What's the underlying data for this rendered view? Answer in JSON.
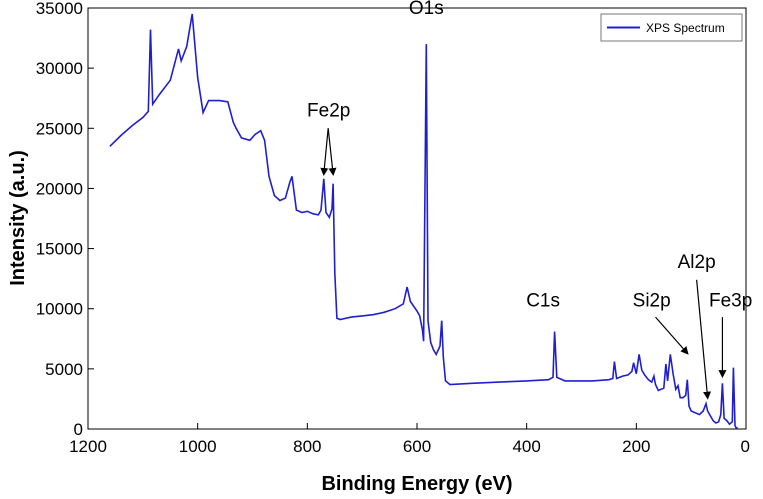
{
  "chart_data": {
    "type": "line",
    "title": "",
    "xlabel": "Binding Energy (eV)",
    "ylabel": "Intensity (a.u.)",
    "xlim": [
      1200,
      0
    ],
    "ylim": [
      0,
      35000
    ],
    "x_reversed": true,
    "x_ticks": [
      1200,
      1000,
      800,
      600,
      400,
      200,
      0
    ],
    "y_ticks": [
      0,
      5000,
      10000,
      15000,
      20000,
      25000,
      30000,
      35000
    ],
    "grid": false,
    "legend": {
      "position": "top-right",
      "entries": [
        "XPS Spectrum"
      ]
    },
    "series": [
      {
        "name": "XPS Spectrum",
        "color": "#1f1fd0",
        "points": [
          [
            1160,
            23500
          ],
          [
            1140,
            24400
          ],
          [
            1120,
            25200
          ],
          [
            1100,
            25900
          ],
          [
            1090,
            26400
          ],
          [
            1086,
            33200
          ],
          [
            1082,
            27000
          ],
          [
            1070,
            27800
          ],
          [
            1050,
            29000
          ],
          [
            1035,
            31600
          ],
          [
            1030,
            30600
          ],
          [
            1020,
            31800
          ],
          [
            1010,
            34500
          ],
          [
            1000,
            29200
          ],
          [
            990,
            26300
          ],
          [
            980,
            27300
          ],
          [
            960,
            27300
          ],
          [
            945,
            27200
          ],
          [
            935,
            25500
          ],
          [
            930,
            25000
          ],
          [
            920,
            24200
          ],
          [
            905,
            24000
          ],
          [
            895,
            24500
          ],
          [
            885,
            24800
          ],
          [
            878,
            24000
          ],
          [
            870,
            21000
          ],
          [
            860,
            19400
          ],
          [
            850,
            19000
          ],
          [
            840,
            19200
          ],
          [
            832,
            20500
          ],
          [
            828,
            21000
          ],
          [
            820,
            18200
          ],
          [
            810,
            18000
          ],
          [
            800,
            18100
          ],
          [
            790,
            17900
          ],
          [
            780,
            17800
          ],
          [
            775,
            18200
          ],
          [
            770,
            20800
          ],
          [
            766,
            18000
          ],
          [
            760,
            17600
          ],
          [
            755,
            18300
          ],
          [
            753,
            20400
          ],
          [
            750,
            13000
          ],
          [
            746,
            9200
          ],
          [
            740,
            9100
          ],
          [
            720,
            9300
          ],
          [
            700,
            9400
          ],
          [
            680,
            9500
          ],
          [
            660,
            9700
          ],
          [
            640,
            10000
          ],
          [
            625,
            10400
          ],
          [
            618,
            11800
          ],
          [
            612,
            10600
          ],
          [
            600,
            9800
          ],
          [
            595,
            9400
          ],
          [
            590,
            8200
          ],
          [
            588,
            7300
          ],
          [
            585,
            22000
          ],
          [
            583,
            32000
          ],
          [
            580,
            9000
          ],
          [
            575,
            7200
          ],
          [
            570,
            6600
          ],
          [
            565,
            6200
          ],
          [
            558,
            6900
          ],
          [
            555,
            9000
          ],
          [
            552,
            6000
          ],
          [
            548,
            4000
          ],
          [
            540,
            3700
          ],
          [
            500,
            3800
          ],
          [
            450,
            3900
          ],
          [
            400,
            4000
          ],
          [
            360,
            4100
          ],
          [
            352,
            4300
          ],
          [
            349,
            8100
          ],
          [
            345,
            4300
          ],
          [
            330,
            4000
          ],
          [
            300,
            4000
          ],
          [
            280,
            4000
          ],
          [
            250,
            4100
          ],
          [
            243,
            4200
          ],
          [
            240,
            5600
          ],
          [
            236,
            4200
          ],
          [
            225,
            4400
          ],
          [
            215,
            4500
          ],
          [
            208,
            4800
          ],
          [
            205,
            5500
          ],
          [
            200,
            4600
          ],
          [
            195,
            6200
          ],
          [
            190,
            4900
          ],
          [
            185,
            4500
          ],
          [
            178,
            4100
          ],
          [
            172,
            3900
          ],
          [
            168,
            4400
          ],
          [
            165,
            3700
          ],
          [
            160,
            3200
          ],
          [
            150,
            3400
          ],
          [
            146,
            5400
          ],
          [
            143,
            4000
          ],
          [
            138,
            6200
          ],
          [
            133,
            4600
          ],
          [
            128,
            3300
          ],
          [
            124,
            3600
          ],
          [
            120,
            2600
          ],
          [
            115,
            2600
          ],
          [
            110,
            2800
          ],
          [
            107,
            4100
          ],
          [
            104,
            1900
          ],
          [
            100,
            1500
          ],
          [
            85,
            1200
          ],
          [
            78,
            1500
          ],
          [
            73,
            2100
          ],
          [
            70,
            1500
          ],
          [
            60,
            700
          ],
          [
            55,
            500
          ],
          [
            50,
            600
          ],
          [
            46,
            1200
          ],
          [
            43,
            3800
          ],
          [
            40,
            900
          ],
          [
            35,
            700
          ],
          [
            30,
            400
          ],
          [
            25,
            600
          ],
          [
            23,
            5100
          ],
          [
            20,
            300
          ],
          [
            18,
            100
          ],
          [
            15,
            50
          ]
        ]
      }
    ],
    "annotations": [
      {
        "label": "O1s",
        "x": 583,
        "y": 34500,
        "arrow": false
      },
      {
        "label": "Fe2p",
        "x": 761,
        "y": 26000,
        "arrow": true,
        "arrow_from": [
          762,
          25000
        ],
        "arrow_targets": [
          [
            770,
            21200
          ],
          [
            753,
            21200
          ]
        ]
      },
      {
        "label": "C1s",
        "x": 370,
        "y": 10200,
        "arrow": false
      },
      {
        "label": "Si2p",
        "x": 172,
        "y": 10200,
        "arrow": true,
        "arrow_from": [
          165,
          9300
        ],
        "arrow_targets": [
          [
            107,
            6300
          ]
        ]
      },
      {
        "label": "Al2p",
        "x": 90,
        "y": 13400,
        "arrow": true,
        "arrow_from": [
          90,
          12400
        ],
        "arrow_targets": [
          [
            70,
            2600
          ]
        ]
      },
      {
        "label": "Fe3p",
        "x": 28,
        "y": 10200,
        "arrow": true,
        "arrow_from": [
          43,
          9300
        ],
        "arrow_targets": [
          [
            43,
            4400
          ]
        ]
      }
    ]
  }
}
